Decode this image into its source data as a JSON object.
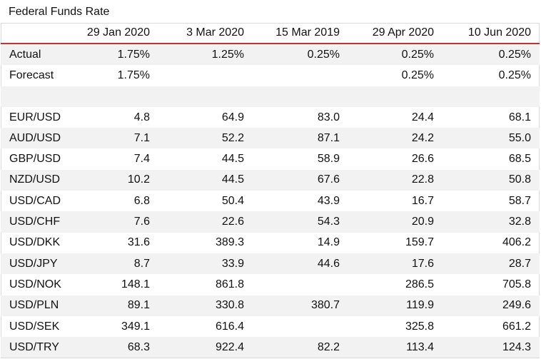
{
  "title": "Federal Funds Rate",
  "columns": [
    "",
    "29 Jan 2020",
    "3 Mar 2020",
    "15 Mar 2019",
    "29 Apr 2020",
    "10 Jun 2020"
  ],
  "rows": [
    {
      "label": "Actual",
      "values": [
        "1.75%",
        "1.25%",
        "0.25%",
        "0.25%",
        "0.25%"
      ],
      "shade": true
    },
    {
      "label": "Forecast",
      "values": [
        "1.75%",
        "",
        "",
        "0.25%",
        "0.25%"
      ],
      "shade": false
    },
    {
      "label": "",
      "values": [
        "",
        "",
        "",
        "",
        ""
      ],
      "shade": true
    },
    {
      "label": "EUR/USD",
      "values": [
        "4.8",
        "64.9",
        "83.0",
        "24.4",
        "68.1"
      ],
      "shade": false
    },
    {
      "label": "AUD/USD",
      "values": [
        "7.1",
        "52.2",
        "87.1",
        "24.2",
        "55.0"
      ],
      "shade": true
    },
    {
      "label": "GBP/USD",
      "values": [
        "7.4",
        "44.5",
        "58.9",
        "26.6",
        "68.5"
      ],
      "shade": false
    },
    {
      "label": "NZD/USD",
      "values": [
        "10.2",
        "44.5",
        "67.6",
        "22.8",
        "50.8"
      ],
      "shade": true
    },
    {
      "label": "USD/CAD",
      "values": [
        "6.8",
        "50.4",
        "43.9",
        "16.7",
        "58.7"
      ],
      "shade": false
    },
    {
      "label": "USD/CHF",
      "values": [
        "7.6",
        "22.6",
        "54.3",
        "20.9",
        "32.8"
      ],
      "shade": true
    },
    {
      "label": "USD/DKK",
      "values": [
        "31.6",
        "389.3",
        "14.9",
        "159.7",
        "406.2"
      ],
      "shade": false
    },
    {
      "label": "USD/JPY",
      "values": [
        "8.7",
        "33.9",
        "44.6",
        "17.6",
        "28.7"
      ],
      "shade": true
    },
    {
      "label": "USD/NOK",
      "values": [
        "148.1",
        "861.8",
        "",
        "286.5",
        "705.8"
      ],
      "shade": false
    },
    {
      "label": "USD/PLN",
      "values": [
        "89.1",
        "330.8",
        "380.7",
        "119.9",
        "249.6"
      ],
      "shade": true
    },
    {
      "label": "USD/SEK",
      "values": [
        "349.1",
        "616.4",
        "",
        "325.8",
        "661.2"
      ],
      "shade": false
    },
    {
      "label": "USD/TRY",
      "values": [
        "68.3",
        "922.4",
        "82.2",
        "113.4",
        "124.3"
      ],
      "shade": true
    }
  ]
}
